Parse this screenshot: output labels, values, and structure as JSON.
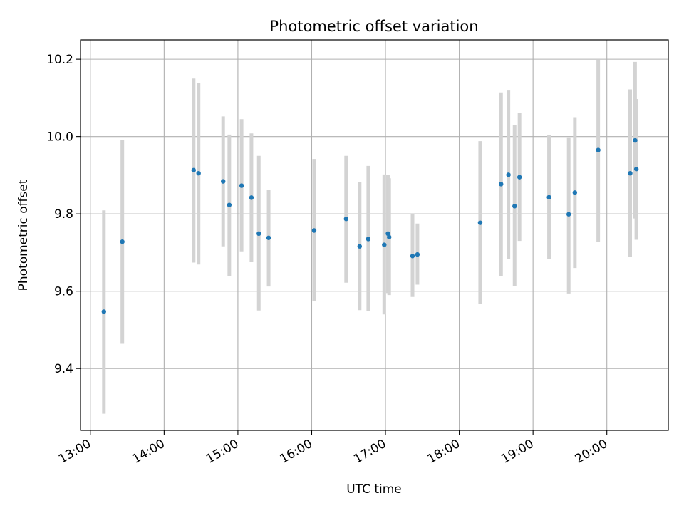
{
  "chart_data": {
    "type": "scatter",
    "title": "Photometric offset variation",
    "xlabel": "UTC time",
    "ylabel": "Photometric offset",
    "x_tick_labels": [
      "13:00",
      "14:00",
      "15:00",
      "16:00",
      "17:00",
      "18:00",
      "19:00",
      "20:00"
    ],
    "y_tick_labels": [
      "9.4",
      "9.6",
      "9.8",
      "10.0",
      "10.2"
    ],
    "y_ticks": [
      9.4,
      9.6,
      9.8,
      10.0,
      10.2
    ],
    "xlim": [
      "12:52",
      "20:50"
    ],
    "ylim": [
      9.24,
      10.25
    ],
    "grid": true,
    "colors": {
      "point": "#1f77b4",
      "errorbar": "#d3d3d3",
      "grid": "#b0b0b0"
    },
    "series": [
      {
        "x": [
          "13:11",
          "13:26",
          "14:24",
          "14:28",
          "14:48",
          "14:53",
          "15:03",
          "15:11",
          "15:17",
          "15:25",
          "16:02",
          "16:28",
          "16:39",
          "16:46",
          "16:59",
          "17:02",
          "17:03",
          "17:22",
          "17:26",
          "18:17",
          "18:34",
          "18:40",
          "18:45",
          "18:49",
          "19:13",
          "19:29",
          "19:34",
          "19:53",
          "20:19",
          "20:23",
          "20:24"
        ],
        "y": [
          9.547,
          9.728,
          9.913,
          9.905,
          9.884,
          9.823,
          9.873,
          9.842,
          9.749,
          9.738,
          9.757,
          9.787,
          9.716,
          9.735,
          9.72,
          9.749,
          9.74,
          9.691,
          9.695,
          9.777,
          9.877,
          9.901,
          9.82,
          9.895,
          9.843,
          9.799,
          9.855,
          9.965,
          9.905,
          9.99,
          9.916
        ],
        "y_low": [
          9.283,
          9.464,
          9.674,
          9.669,
          9.716,
          9.64,
          9.703,
          9.675,
          9.55,
          9.612,
          9.575,
          9.622,
          9.551,
          9.549,
          9.54,
          9.595,
          9.59,
          9.585,
          9.617,
          9.567,
          9.64,
          9.683,
          9.614,
          9.73,
          9.683,
          9.594,
          9.66,
          9.728,
          9.688,
          9.788,
          9.733
        ],
        "y_high": [
          9.809,
          9.992,
          10.15,
          10.138,
          10.052,
          10.005,
          10.045,
          10.008,
          9.95,
          9.861,
          9.942,
          9.95,
          9.882,
          9.924,
          9.902,
          9.9,
          9.892,
          9.8,
          9.775,
          9.988,
          10.114,
          10.119,
          10.03,
          10.061,
          10.003,
          9.998,
          10.05,
          10.2,
          10.122,
          10.193,
          10.097
        ]
      }
    ]
  }
}
